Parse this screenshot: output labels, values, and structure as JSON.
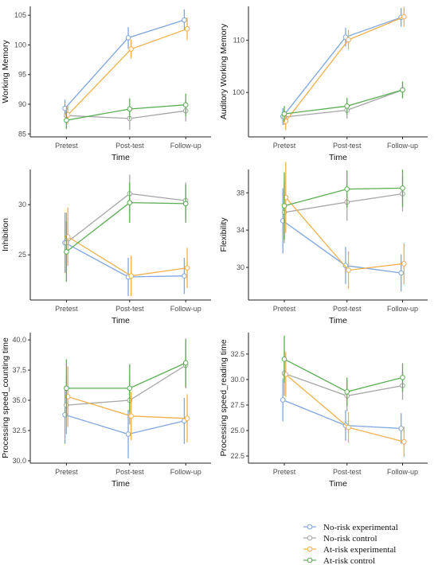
{
  "legend": {
    "entries": [
      {
        "label": "No-risk experimental",
        "color": "#7ea6e0"
      },
      {
        "label": "No-risk control",
        "color": "#a6a6a6"
      },
      {
        "label": "At-risk experimental",
        "color": "#f2b04a"
      },
      {
        "label": "At-risk control",
        "color": "#5aae51"
      }
    ]
  },
  "chart_data": [
    {
      "type": "line",
      "xlabel": "Time",
      "ylabel": "Working Memory",
      "categories": [
        "Pretest",
        "Post-test",
        "Follow-up"
      ],
      "ylim": [
        84.5,
        106.5
      ],
      "yticks": [
        85,
        90,
        95,
        100,
        105
      ],
      "series": [
        {
          "name": "No-risk experimental",
          "values": [
            89.3,
            101.2,
            104.2
          ],
          "errors": [
            1.5,
            1.8,
            1.8
          ]
        },
        {
          "name": "No-risk control",
          "values": [
            88.1,
            87.6,
            88.9
          ],
          "errors": [
            1.4,
            1.9,
            1.8
          ]
        },
        {
          "name": "At-risk experimental",
          "values": [
            88.2,
            99.3,
            102.7
          ],
          "errors": [
            1.5,
            1.6,
            1.9
          ]
        },
        {
          "name": "At-risk control",
          "values": [
            87.3,
            89.2,
            89.9
          ],
          "errors": [
            1.5,
            1.8,
            1.9
          ]
        }
      ]
    },
    {
      "type": "line",
      "xlabel": "Time",
      "ylabel": "Auditory Working Memory",
      "categories": [
        "Pretest",
        "Post-test",
        "Follow-up"
      ],
      "ylim": [
        91.5,
        116.5
      ],
      "yticks": [
        100,
        110
      ],
      "series": [
        {
          "name": "No-risk experimental",
          "values": [
            95.4,
            110.6,
            114.4
          ],
          "errors": [
            1.6,
            1.8,
            1.8
          ]
        },
        {
          "name": "No-risk control",
          "values": [
            95.3,
            96.6,
            100.5
          ],
          "errors": [
            1.5,
            1.6,
            1.6
          ]
        },
        {
          "name": "At-risk experimental",
          "values": [
            94.5,
            110.1,
            114.5
          ],
          "errors": [
            1.7,
            1.9,
            1.9
          ]
        },
        {
          "name": "At-risk control",
          "values": [
            95.9,
            97.4,
            100.5
          ],
          "errors": [
            1.5,
            1.6,
            1.6
          ]
        }
      ]
    },
    {
      "type": "line",
      "xlabel": "Time",
      "ylabel": "Inhibition",
      "categories": [
        "Pretest",
        "Post-test",
        "Follow-up"
      ],
      "ylim": [
        20.5,
        33.5
      ],
      "yticks": [
        25,
        30
      ],
      "series": [
        {
          "name": "No-risk experimental",
          "values": [
            26.2,
            22.8,
            22.9
          ],
          "errors": [
            3.0,
            1.9,
            1.8
          ]
        },
        {
          "name": "No-risk control",
          "values": [
            26.2,
            31.1,
            30.4
          ],
          "errors": [
            3.0,
            1.9,
            1.8
          ]
        },
        {
          "name": "At-risk experimental",
          "values": [
            26.8,
            22.9,
            23.7
          ],
          "errors": [
            2.9,
            2.0,
            2.0
          ]
        },
        {
          "name": "At-risk control",
          "values": [
            25.3,
            30.2,
            30.1
          ],
          "errors": [
            3.0,
            2.0,
            1.9
          ]
        }
      ]
    },
    {
      "type": "line",
      "xlabel": "Time",
      "ylabel": "Flexibility",
      "categories": [
        "Pretest",
        "Post-test",
        "Follow-up"
      ],
      "ylim": [
        26.5,
        40.5
      ],
      "yticks": [
        30,
        34,
        38
      ],
      "series": [
        {
          "name": "No-risk experimental",
          "values": [
            35.0,
            30.2,
            29.4
          ],
          "errors": [
            3.5,
            2.0,
            2.0
          ]
        },
        {
          "name": "No-risk control",
          "values": [
            35.9,
            37.0,
            37.9
          ],
          "errors": [
            3.3,
            2.0,
            1.9
          ]
        },
        {
          "name": "At-risk experimental",
          "values": [
            37.5,
            29.7,
            30.4
          ],
          "errors": [
            3.8,
            2.0,
            2.2
          ]
        },
        {
          "name": "At-risk control",
          "values": [
            36.6,
            38.4,
            38.5
          ],
          "errors": [
            3.6,
            2.0,
            2.0
          ]
        }
      ]
    },
    {
      "type": "line",
      "xlabel": "Time",
      "ylabel": "Processing speed_counting time",
      "categories": [
        "Pretest",
        "Post-test",
        "Follow-up"
      ],
      "ylim": [
        29.8,
        40.6
      ],
      "yticks": [
        30.0,
        32.5,
        35.0,
        37.5,
        40.0
      ],
      "ytick_labels": [
        "30.0",
        "32.5",
        "35.0",
        "37.5",
        "40.0"
      ],
      "series": [
        {
          "name": "No-risk experimental",
          "values": [
            33.8,
            32.2,
            33.3
          ],
          "errors": [
            2.4,
            2.0,
            1.9
          ]
        },
        {
          "name": "No-risk control",
          "values": [
            34.6,
            35.0,
            37.9
          ],
          "errors": [
            2.4,
            2.0,
            1.9
          ]
        },
        {
          "name": "At-risk experimental",
          "values": [
            35.3,
            33.7,
            33.5
          ],
          "errors": [
            2.5,
            2.0,
            2.0
          ]
        },
        {
          "name": "At-risk control",
          "values": [
            36.0,
            36.0,
            38.1
          ],
          "errors": [
            2.4,
            2.0,
            2.0
          ]
        }
      ]
    },
    {
      "type": "line",
      "xlabel": "Time",
      "ylabel": "Processing speed_reading time",
      "categories": [
        "Pretest",
        "Post-test",
        "Follow-up"
      ],
      "ylim": [
        21.8,
        34.6
      ],
      "yticks": [
        22.5,
        25.0,
        27.5,
        30.0,
        32.5
      ],
      "ytick_labels": [
        "22.5",
        "25.0",
        "27.5",
        "30.0",
        "32.5"
      ],
      "series": [
        {
          "name": "No-risk experimental",
          "values": [
            28.0,
            25.5,
            25.2
          ],
          "errors": [
            2.1,
            1.5,
            1.5
          ]
        },
        {
          "name": "No-risk control",
          "values": [
            30.6,
            28.4,
            29.4
          ],
          "errors": [
            2.2,
            1.5,
            1.4
          ]
        },
        {
          "name": "At-risk experimental",
          "values": [
            30.5,
            25.3,
            23.9
          ],
          "errors": [
            2.2,
            1.5,
            1.5
          ]
        },
        {
          "name": "At-risk control",
          "values": [
            32.0,
            28.8,
            30.2
          ],
          "errors": [
            2.3,
            1.4,
            1.4
          ]
        }
      ]
    }
  ]
}
